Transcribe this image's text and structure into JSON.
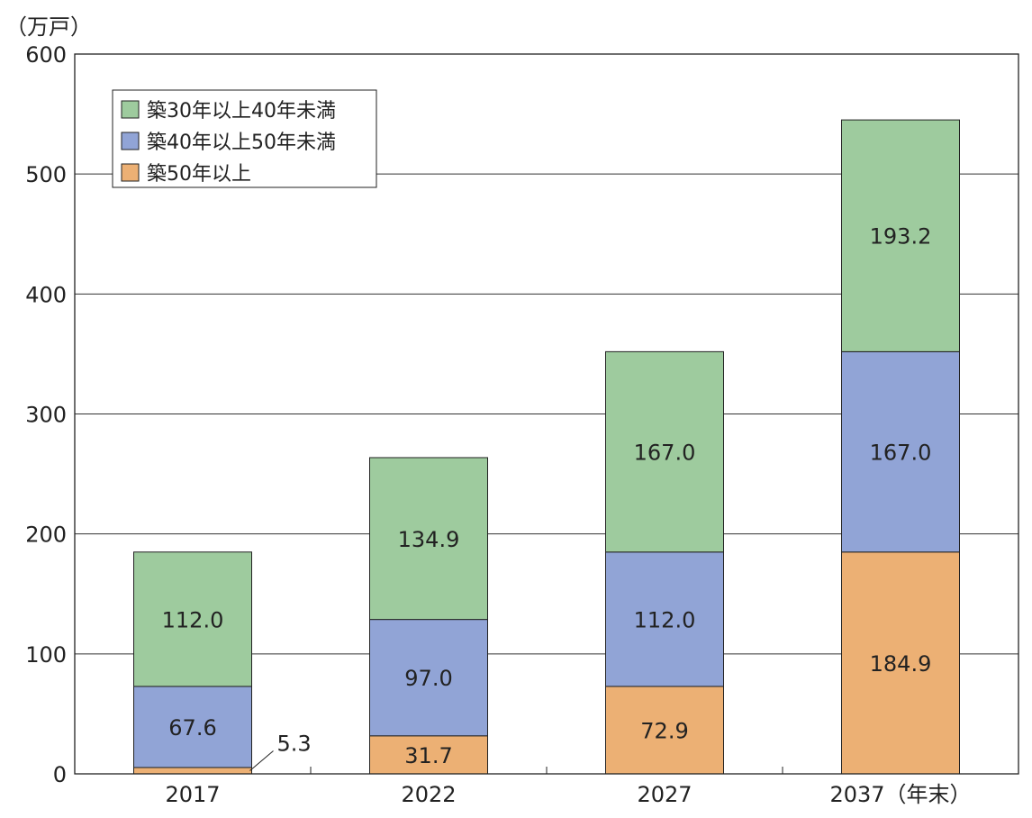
{
  "chart_data": {
    "type": "bar",
    "stacked": true,
    "unit_label": "（万戸）",
    "categories": [
      "2017",
      "2022",
      "2027",
      "2037（年末）"
    ],
    "series": [
      {
        "name": "築50年以上",
        "color": "#ecb074",
        "values": [
          5.3,
          31.7,
          72.9,
          184.9
        ],
        "labels": [
          "5.3",
          "31.7",
          "72.9",
          "184.9"
        ]
      },
      {
        "name": "築40年以上50年未満",
        "color": "#91a4d6",
        "values": [
          67.6,
          97.0,
          112.0,
          167.0
        ],
        "labels": [
          "67.6",
          "97.0",
          "112.0",
          "167.0"
        ]
      },
      {
        "name": "築30年以上40年未満",
        "color": "#9ecb9e",
        "values": [
          112.0,
          134.9,
          167.0,
          193.2
        ],
        "labels": [
          "112.0",
          "134.9",
          "167.0",
          "193.2"
        ]
      }
    ],
    "legend_order": [
      "築30年以上40年未満",
      "築40年以上50年未満",
      "築50年以上"
    ],
    "ylim": [
      0,
      600
    ],
    "yticks": [
      0,
      100,
      200,
      300,
      400,
      500,
      600
    ],
    "grid": true,
    "legend_position": "top-left"
  }
}
